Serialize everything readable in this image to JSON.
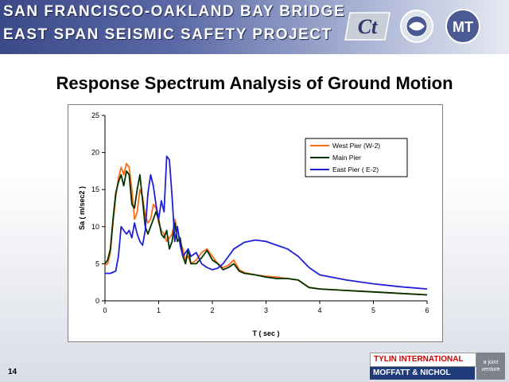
{
  "banner": {
    "line1": "SAN FRANCISCO-OAKLAND BAY BRIDGE",
    "line2": "EAST SPAN SEISMIC SAFETY PROJECT",
    "logos": [
      "caltrans-logo-icon",
      "bay-area-toll-seal-icon",
      "mtc-logo-icon"
    ]
  },
  "slide": {
    "title": "Response Spectrum Analysis of Ground Motion",
    "page_number": "14"
  },
  "footer": {
    "company1": "TYLIN INTERNATIONAL",
    "company2": "MOFFATT & NICHOL",
    "joint": "a joint venture"
  },
  "chart_data": {
    "type": "line",
    "xlabel": "T ( sec )",
    "ylabel": "Sa ( m/sec2 )",
    "xlim": [
      0,
      6
    ],
    "ylim": [
      0,
      25
    ],
    "xticks": [
      0,
      1,
      2,
      3,
      4,
      5,
      6
    ],
    "yticks": [
      0,
      5,
      10,
      15,
      20,
      25
    ],
    "grid": false,
    "legend_position": "top-right",
    "series": [
      {
        "name": "West Pier (W-2)",
        "color": "#ff6a13",
        "x": [
          0,
          0.05,
          0.1,
          0.15,
          0.2,
          0.25,
          0.3,
          0.35,
          0.4,
          0.45,
          0.5,
          0.55,
          0.6,
          0.65,
          0.7,
          0.75,
          0.8,
          0.85,
          0.9,
          0.95,
          1.0,
          1.05,
          1.1,
          1.15,
          1.2,
          1.25,
          1.3,
          1.35,
          1.4,
          1.45,
          1.5,
          1.55,
          1.6,
          1.7,
          1.8,
          1.9,
          2.0,
          2.1,
          2.2,
          2.3,
          2.4,
          2.5,
          2.6,
          2.8,
          3.0,
          3.2,
          3.4,
          3.6,
          3.7,
          3.8,
          4.0,
          4.5,
          5.0,
          5.5,
          6.0
        ],
        "y": [
          4.8,
          5.0,
          6.5,
          10.5,
          14.0,
          16.5,
          18.0,
          17.0,
          18.5,
          18.0,
          15.0,
          11.0,
          12.0,
          15.0,
          14.0,
          11.5,
          10.5,
          11.0,
          13.0,
          12.5,
          10.5,
          9.5,
          9.0,
          8.0,
          8.5,
          9.0,
          11.0,
          9.5,
          8.0,
          7.0,
          5.5,
          6.0,
          5.0,
          5.5,
          6.5,
          7.0,
          6.0,
          5.0,
          4.5,
          4.8,
          5.5,
          4.2,
          3.8,
          3.5,
          3.3,
          3.2,
          3.0,
          2.8,
          2.3,
          1.8,
          1.6,
          1.4,
          1.2,
          1.0,
          0.8
        ]
      },
      {
        "name": "Main Pier",
        "color": "#003300",
        "x": [
          0,
          0.05,
          0.1,
          0.15,
          0.2,
          0.25,
          0.3,
          0.35,
          0.4,
          0.45,
          0.5,
          0.55,
          0.6,
          0.65,
          0.7,
          0.75,
          0.8,
          0.85,
          0.9,
          0.95,
          1.0,
          1.05,
          1.1,
          1.15,
          1.2,
          1.25,
          1.3,
          1.35,
          1.4,
          1.45,
          1.5,
          1.55,
          1.6,
          1.7,
          1.8,
          1.9,
          2.0,
          2.1,
          2.2,
          2.3,
          2.4,
          2.5,
          2.6,
          2.8,
          3.0,
          3.2,
          3.4,
          3.6,
          3.7,
          3.8,
          4.0,
          4.5,
          5.0,
          5.5,
          6.0
        ],
        "y": [
          5.0,
          5.5,
          7.0,
          11.0,
          14.5,
          16.0,
          17.0,
          15.5,
          17.5,
          17.0,
          13.0,
          12.5,
          15.0,
          17.0,
          13.5,
          10.0,
          9.0,
          10.0,
          11.0,
          12.0,
          11.0,
          9.0,
          8.5,
          9.5,
          7.0,
          8.0,
          10.5,
          8.0,
          8.5,
          6.0,
          5.0,
          7.0,
          5.0,
          5.0,
          5.8,
          6.8,
          5.5,
          5.0,
          4.2,
          4.5,
          5.0,
          4.0,
          3.7,
          3.5,
          3.2,
          3.0,
          3.0,
          2.8,
          2.3,
          1.8,
          1.6,
          1.4,
          1.2,
          1.0,
          0.8
        ]
      },
      {
        "name": "East Pier ( E-2)",
        "color": "#1f1fd8",
        "x": [
          0,
          0.1,
          0.2,
          0.25,
          0.3,
          0.35,
          0.4,
          0.45,
          0.5,
          0.55,
          0.6,
          0.65,
          0.7,
          0.75,
          0.8,
          0.85,
          0.9,
          0.95,
          1.0,
          1.05,
          1.1,
          1.15,
          1.2,
          1.25,
          1.3,
          1.35,
          1.4,
          1.45,
          1.5,
          1.55,
          1.6,
          1.7,
          1.8,
          1.9,
          2.0,
          2.1,
          2.2,
          2.3,
          2.4,
          2.6,
          2.8,
          3.0,
          3.2,
          3.4,
          3.6,
          3.8,
          4.0,
          4.5,
          5.0,
          5.5,
          6.0
        ],
        "y": [
          3.7,
          3.7,
          4.0,
          6.0,
          10.0,
          9.5,
          9.0,
          9.5,
          8.5,
          10.5,
          9.0,
          8.0,
          7.5,
          9.5,
          14.5,
          17.0,
          15.5,
          13.0,
          11.0,
          13.5,
          12.0,
          19.5,
          19.0,
          14.0,
          8.0,
          10.0,
          7.5,
          6.0,
          6.5,
          7.0,
          6.0,
          6.5,
          5.0,
          4.5,
          4.2,
          4.4,
          5.0,
          6.0,
          7.0,
          7.9,
          8.2,
          8.0,
          7.5,
          7.0,
          6.0,
          4.5,
          3.5,
          2.8,
          2.3,
          1.9,
          1.6
        ]
      }
    ]
  }
}
